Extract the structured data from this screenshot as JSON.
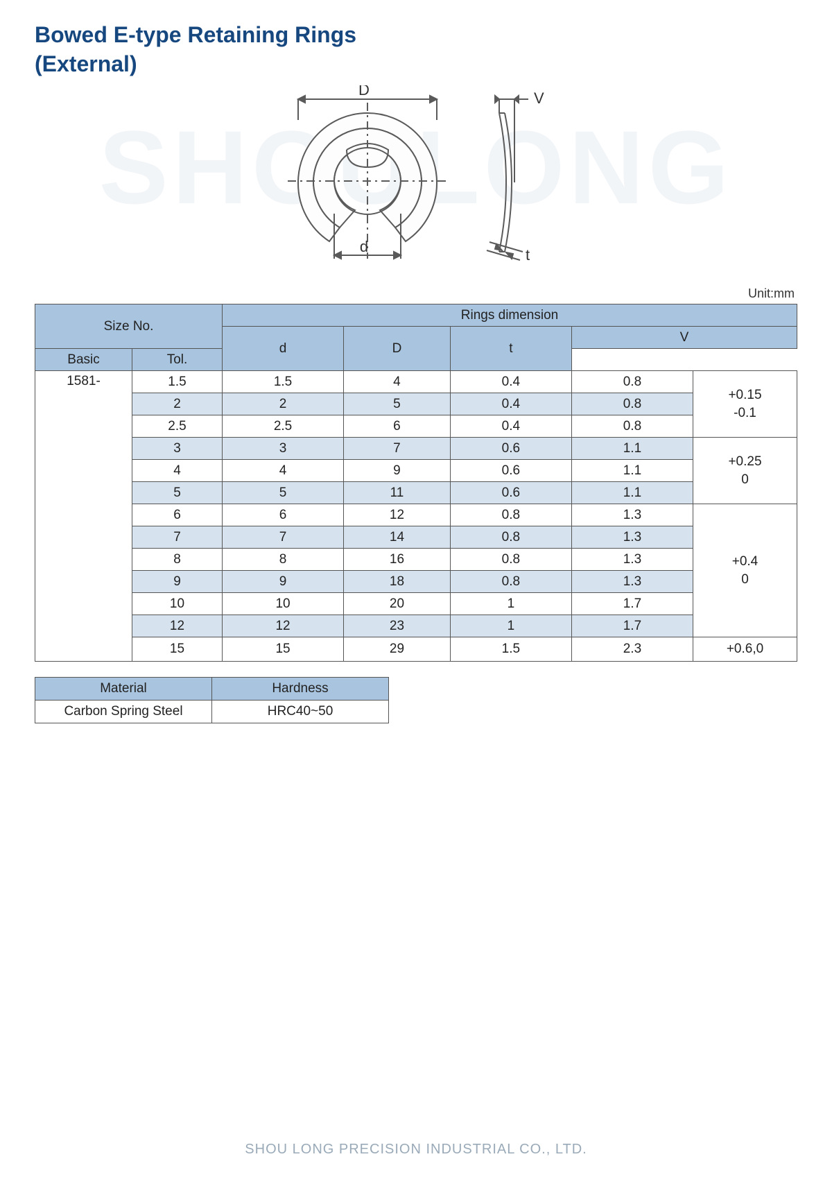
{
  "title_line1": "Bowed E-type Retaining Rings",
  "title_line2": "(External)",
  "watermark": "SHOULONG",
  "unit_label": "Unit:mm",
  "diagram": {
    "labels": {
      "D": "D",
      "d": "d",
      "V": "V",
      "t": "t"
    },
    "line_color": "#5a5a5a",
    "line_width": 2
  },
  "table": {
    "header_bg": "#a9c4de",
    "alt_row_bg": "#d6e3ef",
    "border_color": "#555555",
    "headers": {
      "size_no": "Size No.",
      "rings_dim": "Rings dimension",
      "d": "d",
      "D": "D",
      "t": "t",
      "V": "V",
      "basic": "Basic",
      "tol": "Tol."
    },
    "prefix": "1581-",
    "tol_groups": [
      {
        "span": 3,
        "lines": [
          "+0.15",
          "-0.1"
        ]
      },
      {
        "span": 3,
        "lines": [
          "+0.25",
          "0"
        ]
      },
      {
        "span": 6,
        "lines": [
          "+0.4",
          "0"
        ]
      },
      {
        "span": 1,
        "lines": [
          "+0.6,0"
        ]
      }
    ],
    "rows": [
      {
        "size": "1.5",
        "d": "1.5",
        "D": "4",
        "t": "0.4",
        "basic": "0.8",
        "alt": false
      },
      {
        "size": "2",
        "d": "2",
        "D": "5",
        "t": "0.4",
        "basic": "0.8",
        "alt": true
      },
      {
        "size": "2.5",
        "d": "2.5",
        "D": "6",
        "t": "0.4",
        "basic": "0.8",
        "alt": false
      },
      {
        "size": "3",
        "d": "3",
        "D": "7",
        "t": "0.6",
        "basic": "1.1",
        "alt": true
      },
      {
        "size": "4",
        "d": "4",
        "D": "9",
        "t": "0.6",
        "basic": "1.1",
        "alt": false
      },
      {
        "size": "5",
        "d": "5",
        "D": "11",
        "t": "0.6",
        "basic": "1.1",
        "alt": true
      },
      {
        "size": "6",
        "d": "6",
        "D": "12",
        "t": "0.8",
        "basic": "1.3",
        "alt": false
      },
      {
        "size": "7",
        "d": "7",
        "D": "14",
        "t": "0.8",
        "basic": "1.3",
        "alt": true
      },
      {
        "size": "8",
        "d": "8",
        "D": "16",
        "t": "0.8",
        "basic": "1.3",
        "alt": false
      },
      {
        "size": "9",
        "d": "9",
        "D": "18",
        "t": "0.8",
        "basic": "1.3",
        "alt": true
      },
      {
        "size": "10",
        "d": "10",
        "D": "20",
        "t": "1",
        "basic": "1.7",
        "alt": false
      },
      {
        "size": "12",
        "d": "12",
        "D": "23",
        "t": "1",
        "basic": "1.7",
        "alt": true
      },
      {
        "size": "15",
        "d": "15",
        "D": "29",
        "t": "1.5",
        "basic": "2.3",
        "alt": false
      }
    ]
  },
  "material_table": {
    "headers": {
      "material": "Material",
      "hardness": "Hardness"
    },
    "row": {
      "material": "Carbon Spring Steel",
      "hardness": "HRC40~50"
    }
  },
  "footer": "SHOU LONG PRECISION INDUSTRIAL CO., LTD."
}
